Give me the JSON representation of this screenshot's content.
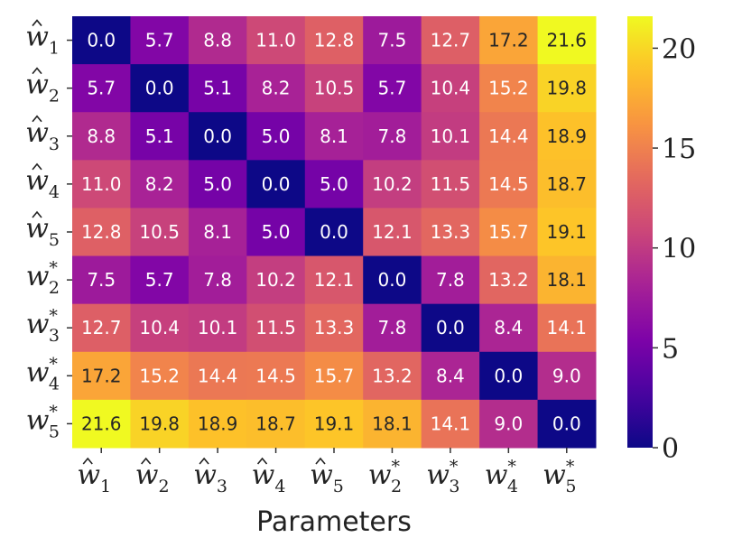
{
  "chart_data": {
    "type": "heatmap",
    "title": "",
    "xlabel": "Parameters",
    "ylabel": "",
    "colormap": "plasma",
    "x_labels": [
      {
        "base": "w",
        "hat": true,
        "sub": "1",
        "sup": ""
      },
      {
        "base": "w",
        "hat": true,
        "sub": "2",
        "sup": ""
      },
      {
        "base": "w",
        "hat": true,
        "sub": "3",
        "sup": ""
      },
      {
        "base": "w",
        "hat": true,
        "sub": "4",
        "sup": ""
      },
      {
        "base": "w",
        "hat": true,
        "sub": "5",
        "sup": ""
      },
      {
        "base": "w",
        "hat": false,
        "sub": "2",
        "sup": "*"
      },
      {
        "base": "w",
        "hat": false,
        "sub": "3",
        "sup": "*"
      },
      {
        "base": "w",
        "hat": false,
        "sub": "4",
        "sup": "*"
      },
      {
        "base": "w",
        "hat": false,
        "sub": "5",
        "sup": "*"
      }
    ],
    "y_labels": [
      {
        "base": "w",
        "hat": true,
        "sub": "1",
        "sup": ""
      },
      {
        "base": "w",
        "hat": true,
        "sub": "2",
        "sup": ""
      },
      {
        "base": "w",
        "hat": true,
        "sub": "3",
        "sup": ""
      },
      {
        "base": "w",
        "hat": true,
        "sub": "4",
        "sup": ""
      },
      {
        "base": "w",
        "hat": true,
        "sub": "5",
        "sup": ""
      },
      {
        "base": "w",
        "hat": false,
        "sub": "2",
        "sup": "*"
      },
      {
        "base": "w",
        "hat": false,
        "sub": "3",
        "sup": "*"
      },
      {
        "base": "w",
        "hat": false,
        "sub": "4",
        "sup": "*"
      },
      {
        "base": "w",
        "hat": false,
        "sub": "5",
        "sup": "*"
      }
    ],
    "values": [
      [
        0.0,
        5.7,
        8.8,
        11.0,
        12.8,
        7.5,
        12.7,
        17.2,
        21.6
      ],
      [
        5.7,
        0.0,
        5.1,
        8.2,
        10.5,
        5.7,
        10.4,
        15.2,
        19.8
      ],
      [
        8.8,
        5.1,
        0.0,
        5.0,
        8.1,
        7.8,
        10.1,
        14.4,
        18.9
      ],
      [
        11.0,
        8.2,
        5.0,
        0.0,
        5.0,
        10.2,
        11.5,
        14.5,
        18.7
      ],
      [
        12.8,
        10.5,
        8.1,
        5.0,
        0.0,
        12.1,
        13.3,
        15.7,
        19.1
      ],
      [
        7.5,
        5.7,
        7.8,
        10.2,
        12.1,
        0.0,
        7.8,
        13.2,
        18.1
      ],
      [
        12.7,
        10.4,
        10.1,
        11.5,
        13.3,
        7.8,
        0.0,
        8.4,
        14.1
      ],
      [
        17.2,
        15.2,
        14.4,
        14.5,
        15.7,
        13.2,
        8.4,
        0.0,
        9.0
      ],
      [
        21.6,
        19.8,
        18.9,
        18.7,
        19.1,
        18.1,
        14.1,
        9.0,
        0.0
      ]
    ],
    "value_format": "0.0",
    "vmin": 0,
    "vmax": 21.6,
    "colorbar": {
      "ticks": [
        0,
        5,
        10,
        15,
        20
      ],
      "tick_labels": [
        "0",
        "5",
        "10",
        "15",
        "20"
      ]
    }
  }
}
